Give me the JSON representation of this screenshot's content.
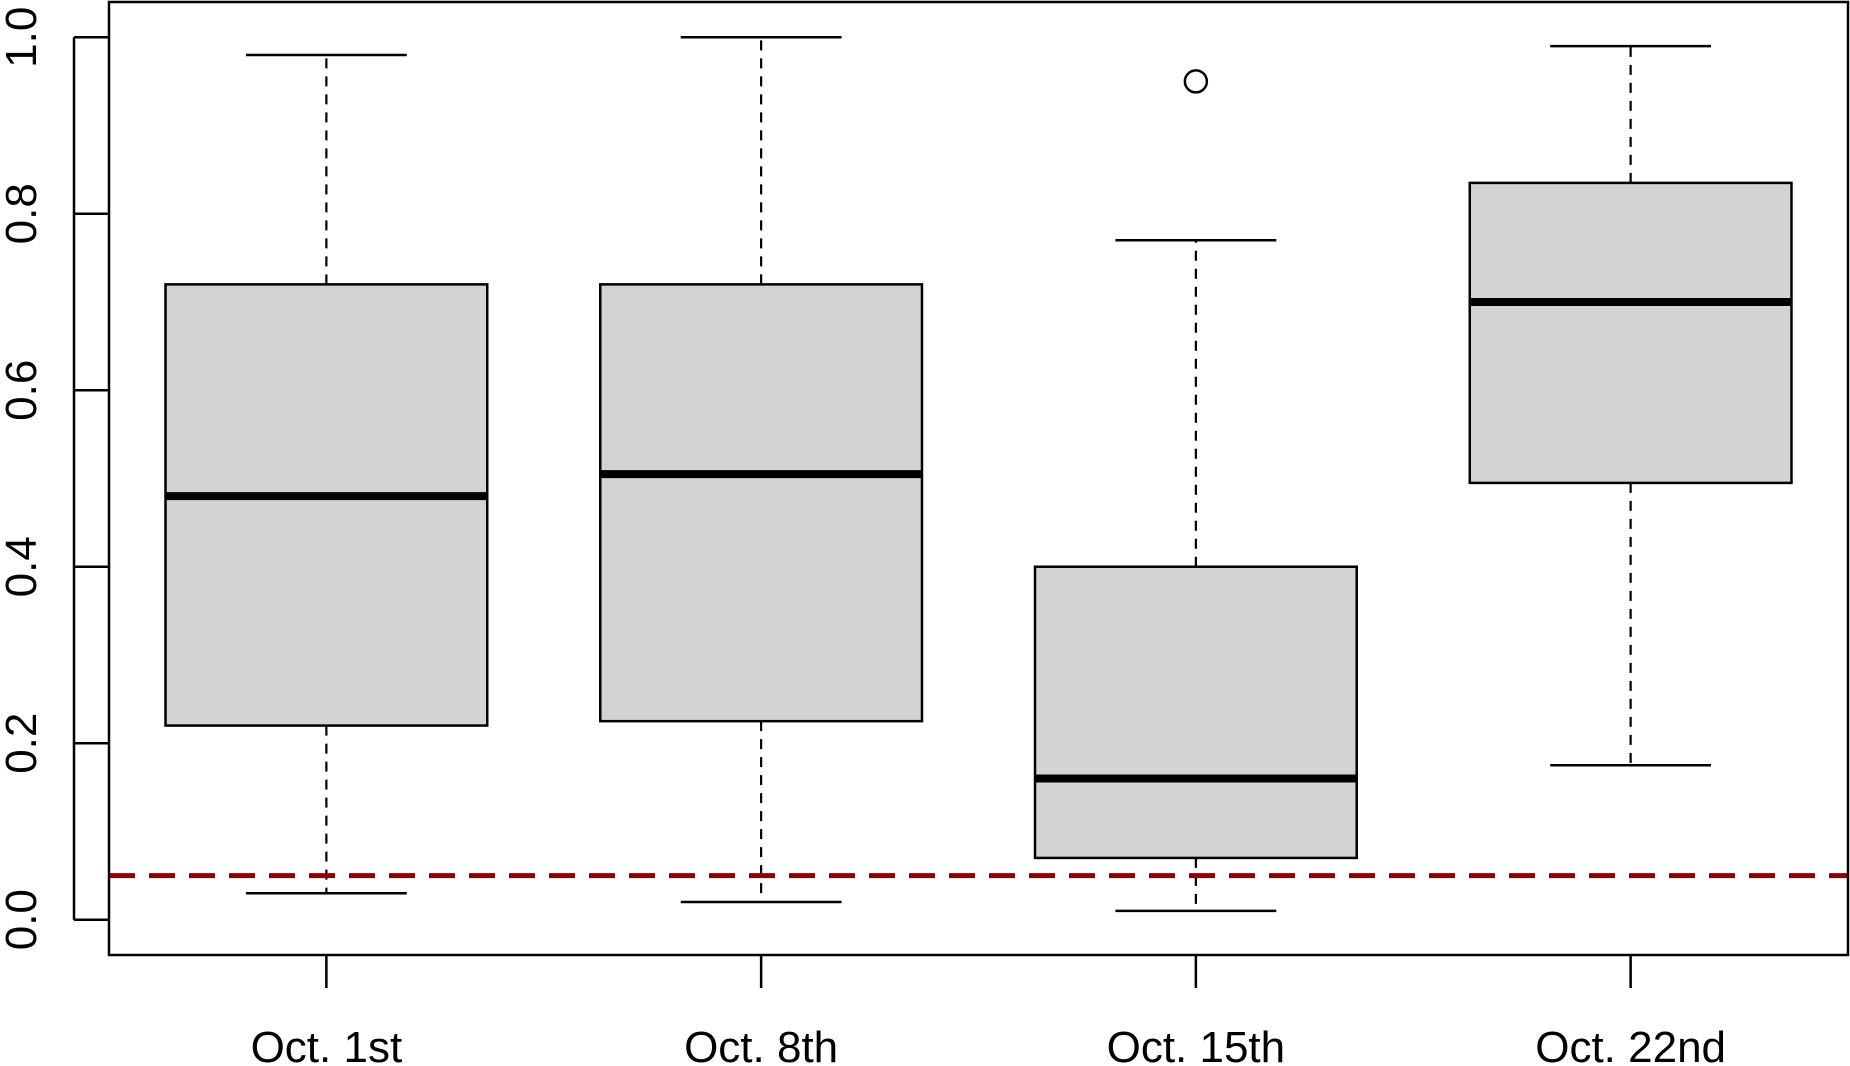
{
  "chart_data": {
    "type": "boxplot",
    "title": "",
    "xlabel": "",
    "ylabel": "",
    "ylim": [
      -0.04,
      1.04
    ],
    "yticks": [
      0.0,
      0.2,
      0.4,
      0.6,
      0.8,
      1.0
    ],
    "ytick_labels": [
      "0.0",
      "0.2",
      "0.4",
      "0.6",
      "0.8",
      "1.0"
    ],
    "categories": [
      "Oct. 1st",
      "Oct. 8th",
      "Oct. 15th",
      "Oct. 22nd"
    ],
    "boxes": [
      {
        "category": "Oct. 1st",
        "whisker_low": 0.03,
        "q1": 0.22,
        "median": 0.48,
        "q3": 0.72,
        "whisker_high": 0.98,
        "outliers": []
      },
      {
        "category": "Oct. 8th",
        "whisker_low": 0.02,
        "q1": 0.225,
        "median": 0.505,
        "q3": 0.72,
        "whisker_high": 1.0,
        "outliers": []
      },
      {
        "category": "Oct. 15th",
        "whisker_low": 0.01,
        "q1": 0.07,
        "median": 0.16,
        "q3": 0.4,
        "whisker_high": 0.77,
        "outliers": [
          0.95
        ]
      },
      {
        "category": "Oct. 22nd",
        "whisker_low": 0.175,
        "q1": 0.495,
        "median": 0.7,
        "q3": 0.835,
        "whisker_high": 0.99,
        "outliers": []
      }
    ],
    "reference_line": {
      "y": 0.05,
      "color": "#8B0000",
      "style": "dashed"
    },
    "box_fill": "#d3d3d3",
    "grid": false,
    "legend": "none"
  }
}
